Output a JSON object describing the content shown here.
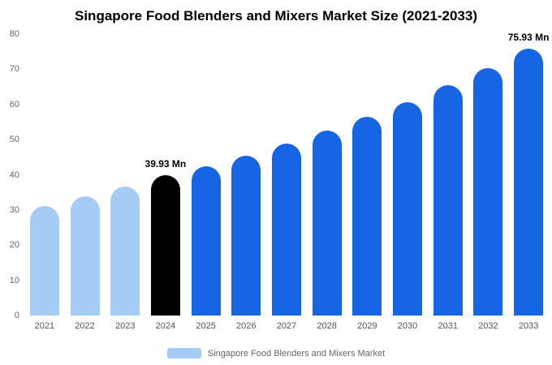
{
  "title": "Singapore Food Blenders and Mixers Market Size (2021-2033)",
  "colors": {
    "historical": "#a4ccf4",
    "base_year": "#000000",
    "forecast": "#1666e3"
  },
  "legend": {
    "label": "Singapore Food Blenders and Mixers Market",
    "swatch_color": "#a4ccf4"
  },
  "chart_data": {
    "type": "bar",
    "title": "Singapore Food Blenders and Mixers Market Size (2021-2033)",
    "categories": [
      "2021",
      "2022",
      "2023",
      "2024",
      "2025",
      "2026",
      "2027",
      "2028",
      "2029",
      "2030",
      "2031",
      "2032",
      "2033"
    ],
    "values": [
      31.2,
      34.0,
      36.6,
      39.93,
      42.4,
      45.4,
      48.9,
      52.5,
      56.5,
      60.6,
      65.5,
      70.4,
      75.93
    ],
    "color_roles": [
      "historical",
      "historical",
      "historical",
      "base_year",
      "forecast",
      "forecast",
      "forecast",
      "forecast",
      "forecast",
      "forecast",
      "forecast",
      "forecast",
      "forecast"
    ],
    "annotations": [
      {
        "category": "2024",
        "text": "39.93 Mn"
      },
      {
        "category": "2033",
        "text": "75.93 Mn"
      }
    ],
    "xlabel": "",
    "ylabel": "",
    "ylim": [
      0,
      80
    ],
    "yticks": [
      0,
      10,
      20,
      30,
      40,
      50,
      60,
      70,
      80
    ],
    "grid": false,
    "legend_position": "bottom"
  }
}
